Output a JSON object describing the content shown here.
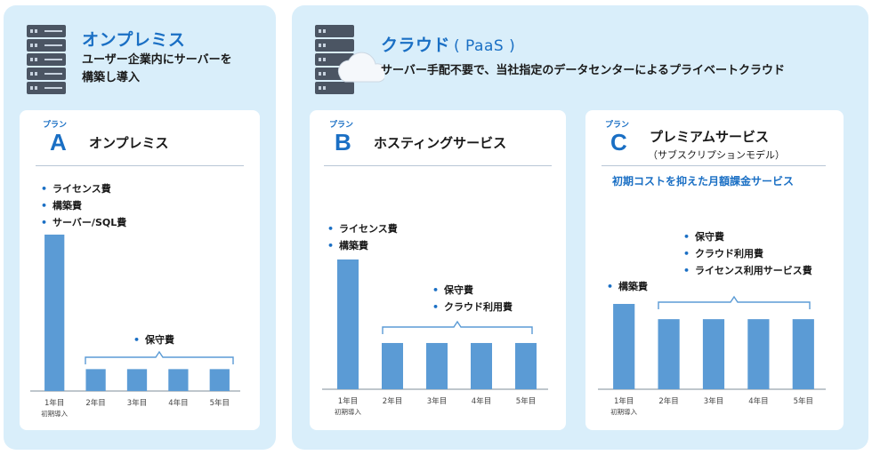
{
  "onprem": {
    "title": "オンプレミス",
    "subtitle_line1": "ユーザー企業内にサーバーを",
    "subtitle_line2": "構築し導入"
  },
  "cloud": {
    "title": "クラウド",
    "title_paren": "( PaaS )",
    "subtitle": "サーバー手配不要で、当社指定のデータセンターによるプライベートクラウド"
  },
  "icons": {
    "server": "server-rack-icon",
    "cloud": "cloud-icon"
  },
  "colors": {
    "accent": "#1a6fc4",
    "bar": "#5b9bd5",
    "panel": "#d9eefa"
  },
  "plans": [
    {
      "label": "プラン",
      "letter": "A",
      "name": "オンプレミス",
      "note": "",
      "tagline": "",
      "bullets_first": [
        "ライセンス費",
        "構築費",
        "サーバー/SQL費"
      ],
      "bullets_recurring": [
        "保守費"
      ]
    },
    {
      "label": "プラン",
      "letter": "B",
      "name": "ホスティングサービス",
      "note": "",
      "tagline": "",
      "bullets_first": [
        "ライセンス費",
        "構築費"
      ],
      "bullets_recurring": [
        "保守費",
        "クラウド利用費"
      ]
    },
    {
      "label": "プラン",
      "letter": "C",
      "name": "プレミアムサービス",
      "note": "（サブスクリプションモデル）",
      "tagline": "初期コストを抑えた月額課金サービス",
      "bullets_first": [
        "構築費"
      ],
      "bullets_recurring": [
        "保守費",
        "クラウド利用費",
        "ライセンス利用サービス費"
      ]
    }
  ],
  "chart_data": [
    {
      "type": "bar",
      "categories": [
        "1年目",
        "2年目",
        "3年目",
        "4年目",
        "5年目"
      ],
      "category_sublabels": [
        "初期導入",
        "",
        "",
        "",
        ""
      ],
      "values": [
        10,
        1.4,
        1.4,
        1.4,
        1.4
      ]
    },
    {
      "type": "bar",
      "categories": [
        "1年目",
        "2年目",
        "3年目",
        "4年目",
        "5年目"
      ],
      "category_sublabels": [
        "初期導入",
        "",
        "",
        "",
        ""
      ],
      "values": [
        8.7,
        3.1,
        3.1,
        3.1,
        3.1
      ]
    },
    {
      "type": "bar",
      "categories": [
        "1年目",
        "2年目",
        "3年目",
        "4年目",
        "5年目"
      ],
      "category_sublabels": [
        "初期導入",
        "",
        "",
        "",
        ""
      ],
      "values": [
        5.6,
        4.6,
        4.6,
        4.6,
        4.6
      ]
    }
  ]
}
